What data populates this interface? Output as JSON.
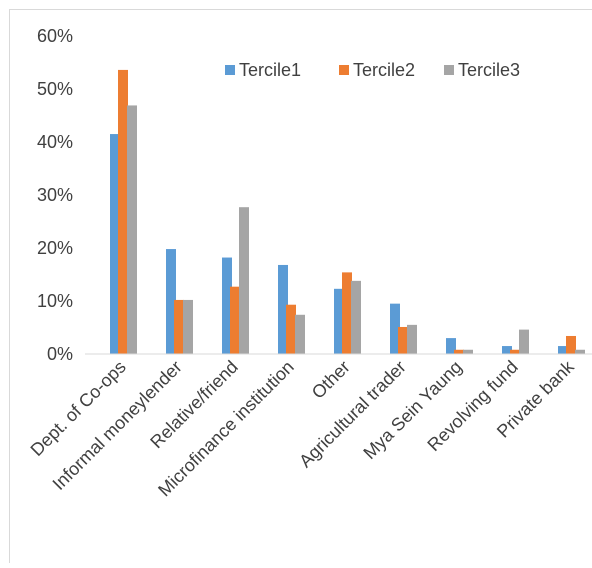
{
  "chart_data": {
    "type": "bar",
    "title": "",
    "xlabel": "",
    "ylabel": "",
    "categories": [
      "Dept. of Co-ops",
      "Informal moneylender",
      "Relative/friend",
      "Microfinance institution",
      "Other",
      "Agricultural trader",
      "Mya Sein Yaung",
      "Revolving fund",
      "Private bank"
    ],
    "series": [
      {
        "name": "Tercile1",
        "color": "#5B9BD5",
        "values": [
          41.5,
          19.8,
          18.2,
          16.8,
          12.3,
          9.5,
          3.0,
          1.5,
          1.5
        ]
      },
      {
        "name": "Tercile2",
        "color": "#ED7D31",
        "values": [
          53.6,
          10.2,
          12.7,
          9.3,
          15.4,
          5.1,
          0.8,
          0.8,
          3.4
        ]
      },
      {
        "name": "Tercile3",
        "color": "#A5A5A5",
        "values": [
          46.9,
          10.2,
          27.7,
          7.4,
          13.8,
          5.5,
          0.8,
          4.6,
          0.8
        ]
      }
    ],
    "yticks": [
      "0%",
      "10%",
      "20%",
      "30%",
      "40%",
      "50%",
      "60%"
    ],
    "ylim": [
      0,
      60
    ],
    "grid": false,
    "legend": "top-right",
    "colors": {
      "axis_line": "#D9D9D9",
      "text": "#404040",
      "border": "#D9D9D9"
    }
  }
}
